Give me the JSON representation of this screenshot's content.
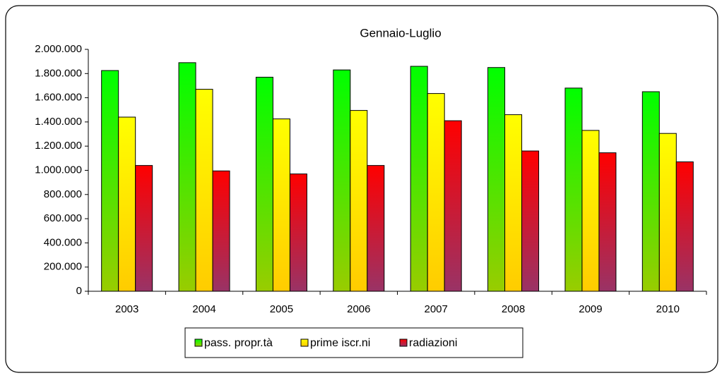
{
  "chart_data": {
    "type": "bar",
    "title": "Gennaio-Luglio",
    "categories": [
      "2003",
      "2004",
      "2005",
      "2006",
      "2007",
      "2008",
      "2009",
      "2010"
    ],
    "series": [
      {
        "name": "pass. propr.tà",
        "color": "#00ff00",
        "gradient_end": "#99cc00",
        "values": [
          1825000,
          1890000,
          1770000,
          1830000,
          1860000,
          1850000,
          1680000,
          1650000
        ]
      },
      {
        "name": "prime iscr.ni",
        "color": "#ffff00",
        "gradient_end": "#ffcc00",
        "values": [
          1440000,
          1670000,
          1425000,
          1495000,
          1635000,
          1460000,
          1330000,
          1305000
        ]
      },
      {
        "name": "radiazioni",
        "color": "#ff0000",
        "gradient_end": "#993366",
        "values": [
          1040000,
          995000,
          970000,
          1040000,
          1410000,
          1160000,
          1145000,
          1070000
        ]
      }
    ],
    "ylim": [
      0,
      2000000
    ],
    "yticks": [
      0,
      {
        "value": 200000,
        "label": "200.000"
      },
      {
        "value": 400000,
        "label": "400.000"
      },
      {
        "value": 600000,
        "label": "600.000"
      },
      {
        "value": 800000,
        "label": "800.000"
      },
      {
        "value": 1000000,
        "label": "1.000.000"
      },
      {
        "value": 1200000,
        "label": "1.200.000"
      },
      {
        "value": 1400000,
        "label": "1.400.000"
      },
      {
        "value": 1600000,
        "label": "1.600.000"
      },
      {
        "value": 1800000,
        "label": "1.800.000"
      },
      {
        "value": 2000000,
        "label": "2.000.000"
      }
    ],
    "grid": false,
    "legend": "bottom"
  }
}
